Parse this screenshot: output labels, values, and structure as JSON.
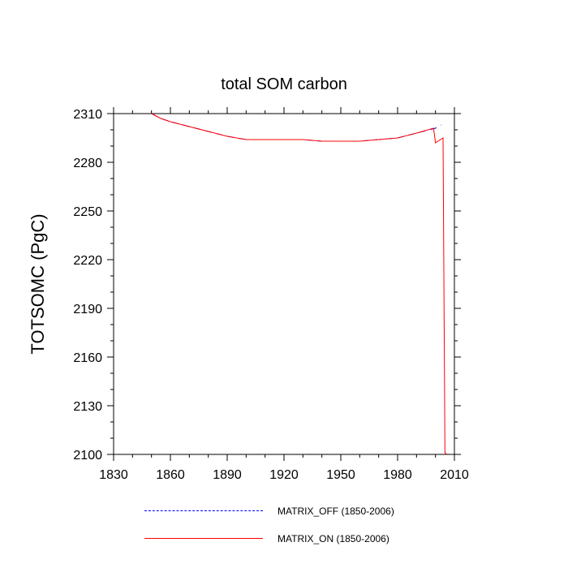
{
  "chart_data": {
    "type": "line",
    "title": "total SOM carbon",
    "xlabel": "",
    "ylabel": "TOTSOMC  (PgC)",
    "xlim": [
      1830,
      2010
    ],
    "ylim": [
      2100,
      2310
    ],
    "xticks": [
      1830,
      1860,
      1890,
      1920,
      1950,
      1980,
      2010
    ],
    "yticks": [
      2100,
      2130,
      2160,
      2190,
      2220,
      2250,
      2280,
      2310
    ],
    "grid": false,
    "legend_position": "bottom",
    "series": [
      {
        "name": "MATRIX_OFF (1850-2006)",
        "color": "#0000ff",
        "style": "dashed",
        "x": [
          1850,
          1855,
          1860,
          1870,
          1880,
          1890,
          1900,
          1910,
          1920,
          1930,
          1940,
          1950,
          1960,
          1970,
          1980,
          1990,
          2000,
          2003
        ],
        "y": [
          2310,
          2307,
          2305,
          2302,
          2299,
          2296,
          2294,
          2294,
          2294,
          2294,
          2293,
          2293,
          2293,
          2294,
          2295,
          2298,
          2301,
          2303
        ]
      },
      {
        "name": "MATRIX_ON (1850-2006)",
        "color": "#ff0000",
        "style": "solid",
        "x": [
          1850,
          1855,
          1860,
          1870,
          1880,
          1890,
          1900,
          1910,
          1920,
          1930,
          1940,
          1950,
          1960,
          1970,
          1980,
          1990,
          1999,
          2000,
          2004,
          2005,
          2006
        ],
        "y": [
          2310,
          2307,
          2305,
          2302,
          2299,
          2296,
          2294,
          2294,
          2294,
          2294,
          2293,
          2293,
          2293,
          2294,
          2295,
          2298,
          2301,
          2292,
          2295,
          2101,
          2100
        ]
      }
    ]
  }
}
